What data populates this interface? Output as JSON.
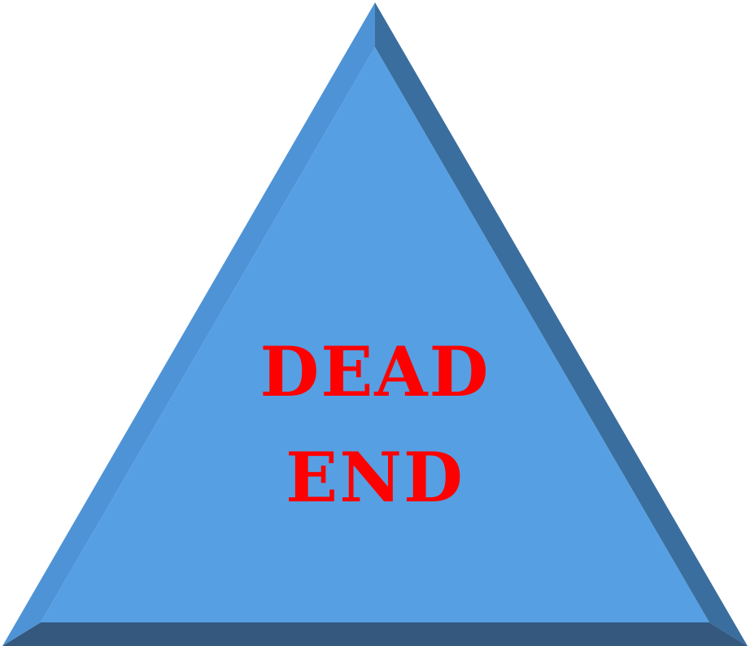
{
  "sign": {
    "line1": "DEAD",
    "line2": "END"
  },
  "colors": {
    "face": "#569fe3",
    "bevel_left": "#4e93d6",
    "bevel_right": "#3a6e9e",
    "bevel_bottom": "#34587e",
    "text": "#ff0000"
  }
}
